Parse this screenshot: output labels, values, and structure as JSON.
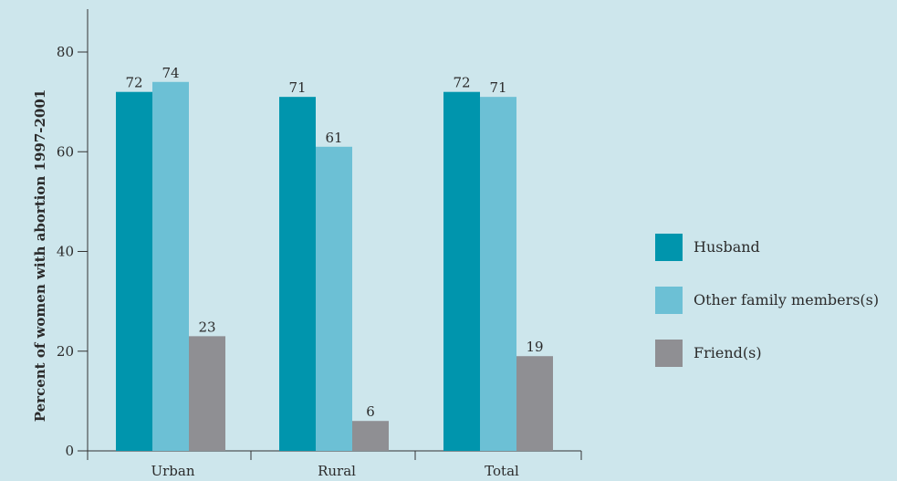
{
  "chart_data": {
    "type": "bar",
    "title": "",
    "xlabel": "",
    "ylabel": "Percent of women with abortion 1997-2001",
    "categories": [
      "Urban",
      "Rural",
      "Total"
    ],
    "series": [
      {
        "name": "Husband",
        "values": [
          72,
          71,
          72
        ],
        "color": "#0095ad"
      },
      {
        "name": "Other family members(s)",
        "values": [
          74,
          61,
          71
        ],
        "color": "#6cc0d5"
      },
      {
        "name": "Friend(s)",
        "values": [
          23,
          6,
          19
        ],
        "color": "#8f8f93"
      }
    ],
    "ylim": [
      0,
      90
    ],
    "yticks": [
      0,
      20,
      40,
      60,
      80
    ],
    "legend": "right",
    "grid": false
  }
}
